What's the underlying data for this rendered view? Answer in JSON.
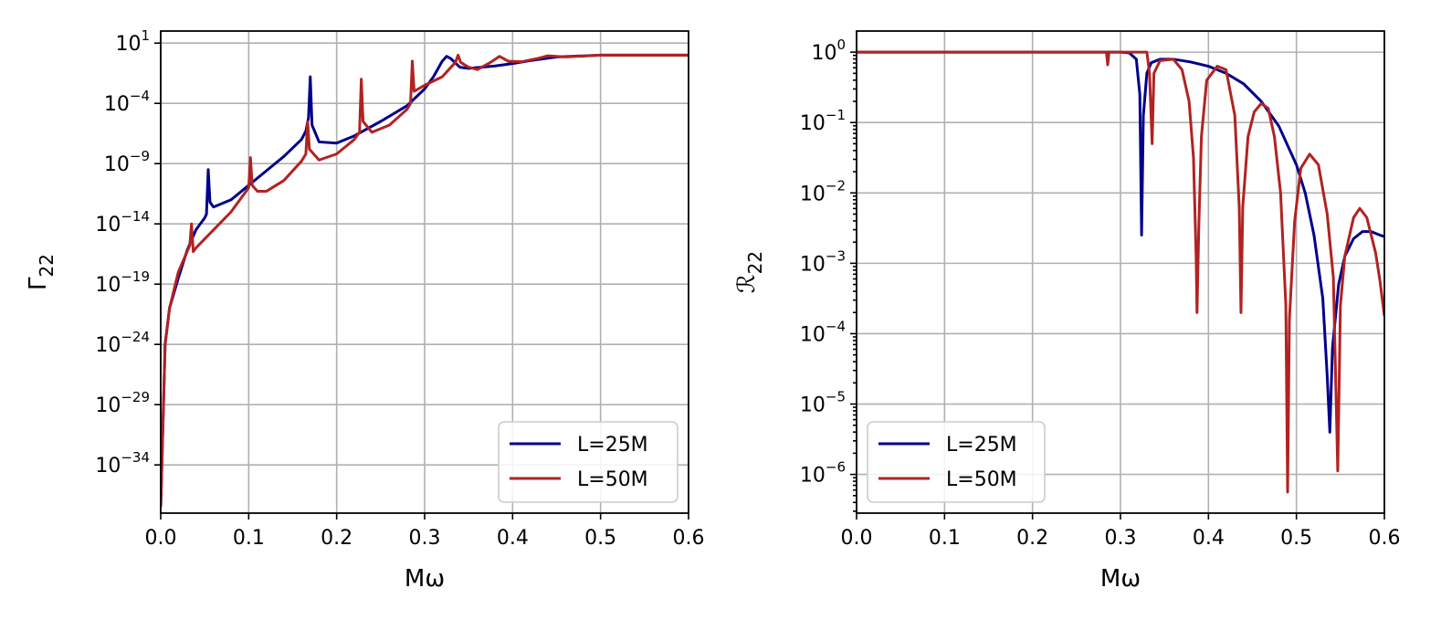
{
  "chart_data": [
    {
      "type": "line",
      "xlabel": "Mω",
      "ylabel": "Γ22",
      "ylabel_main": "Γ",
      "ylabel_sub": "22",
      "xlim": [
        0.0,
        0.6
      ],
      "ylim_log10": [
        -38,
        2
      ],
      "yscale": "log",
      "grid": true,
      "legend_placement": "lower-right",
      "x_ticks": [
        "0.0",
        "0.1",
        "0.2",
        "0.3",
        "0.4",
        "0.5",
        "0.6"
      ],
      "y_ticks": [
        {
          "base": "10",
          "exp": "1"
        },
        {
          "base": "10",
          "exp": "−4"
        },
        {
          "base": "10",
          "exp": "−9"
        },
        {
          "base": "10",
          "exp": "−14"
        },
        {
          "base": "10",
          "exp": "−19"
        },
        {
          "base": "10",
          "exp": "−24"
        },
        {
          "base": "10",
          "exp": "−29"
        },
        {
          "base": "10",
          "exp": "−34"
        }
      ],
      "series": [
        {
          "name": "L=25M",
          "color": "#00008b",
          "points_log10": [
            [
              0.0,
              -37.5
            ],
            [
              0.005,
              -24
            ],
            [
              0.01,
              -21
            ],
            [
              0.02,
              -18.5
            ],
            [
              0.03,
              -16.2
            ],
            [
              0.04,
              -14.5
            ],
            [
              0.05,
              -13.5
            ],
            [
              0.052,
              -13.2
            ],
            [
              0.054,
              -9.5
            ],
            [
              0.056,
              -12.2
            ],
            [
              0.06,
              -12.6
            ],
            [
              0.08,
              -12
            ],
            [
              0.1,
              -10.8
            ],
            [
              0.12,
              -9.6
            ],
            [
              0.14,
              -8.4
            ],
            [
              0.16,
              -7
            ],
            [
              0.165,
              -6.3
            ],
            [
              0.168,
              -5.2
            ],
            [
              0.17,
              -1.8
            ],
            [
              0.172,
              -5.8
            ],
            [
              0.18,
              -7.2
            ],
            [
              0.2,
              -7.3
            ],
            [
              0.22,
              -6.7
            ],
            [
              0.25,
              -5.5
            ],
            [
              0.28,
              -4.2
            ],
            [
              0.3,
              -2.8
            ],
            [
              0.31,
              -1.8
            ],
            [
              0.32,
              -0.5
            ],
            [
              0.325,
              -0.1
            ],
            [
              0.33,
              -0.3
            ],
            [
              0.34,
              -1.0
            ],
            [
              0.35,
              -1.1
            ],
            [
              0.38,
              -0.9
            ],
            [
              0.4,
              -0.7
            ],
            [
              0.42,
              -0.45
            ],
            [
              0.45,
              -0.15
            ],
            [
              0.5,
              0.0
            ],
            [
              0.6,
              0.0
            ]
          ]
        },
        {
          "name": "L=50M",
          "color": "#b22222",
          "points_log10": [
            [
              0.0,
              -37.5
            ],
            [
              0.005,
              -24
            ],
            [
              0.01,
              -21
            ],
            [
              0.02,
              -18
            ],
            [
              0.03,
              -16.3
            ],
            [
              0.033,
              -15.8
            ],
            [
              0.035,
              -14.0
            ],
            [
              0.037,
              -16.3
            ],
            [
              0.04,
              -16.0
            ],
            [
              0.06,
              -14.5
            ],
            [
              0.08,
              -13
            ],
            [
              0.09,
              -12
            ],
            [
              0.1,
              -11
            ],
            [
              0.102,
              -8.5
            ],
            [
              0.104,
              -10.8
            ],
            [
              0.11,
              -11.3
            ],
            [
              0.12,
              -11.3
            ],
            [
              0.14,
              -10.4
            ],
            [
              0.16,
              -8.8
            ],
            [
              0.165,
              -8.2
            ],
            [
              0.167,
              -5.5
            ],
            [
              0.169,
              -7.8
            ],
            [
              0.18,
              -8.7
            ],
            [
              0.2,
              -8.2
            ],
            [
              0.22,
              -7
            ],
            [
              0.226,
              -6.4
            ],
            [
              0.228,
              -2.0
            ],
            [
              0.23,
              -5.5
            ],
            [
              0.24,
              -6.4
            ],
            [
              0.26,
              -5.8
            ],
            [
              0.28,
              -4.5
            ],
            [
              0.284,
              -4.0
            ],
            [
              0.286,
              -0.5
            ],
            [
              0.288,
              -3.0
            ],
            [
              0.3,
              -2.5
            ],
            [
              0.32,
              -1.8
            ],
            [
              0.335,
              -0.6
            ],
            [
              0.338,
              0.0
            ],
            [
              0.341,
              -0.6
            ],
            [
              0.35,
              -1.0
            ],
            [
              0.36,
              -1.2
            ],
            [
              0.375,
              -0.6
            ],
            [
              0.385,
              -0.1
            ],
            [
              0.395,
              -0.5
            ],
            [
              0.41,
              -0.55
            ],
            [
              0.43,
              -0.25
            ],
            [
              0.44,
              -0.05
            ],
            [
              0.46,
              -0.15
            ],
            [
              0.5,
              0.0
            ],
            [
              0.6,
              0.0
            ]
          ]
        }
      ]
    },
    {
      "type": "line",
      "xlabel": "Mω",
      "ylabel": "ℛ22",
      "ylabel_main": "ℛ",
      "ylabel_sub": "22",
      "xlim": [
        0.0,
        0.6
      ],
      "ylim_log10": [
        -6.55,
        0.3
      ],
      "yscale": "log",
      "grid": true,
      "legend_placement": "lower-left",
      "x_ticks": [
        "0.0",
        "0.1",
        "0.2",
        "0.3",
        "0.4",
        "0.5",
        "0.6"
      ],
      "y_ticks": [
        {
          "base": "10",
          "exp": "0"
        },
        {
          "base": "10",
          "exp": "−1"
        },
        {
          "base": "10",
          "exp": "−2"
        },
        {
          "base": "10",
          "exp": "−3"
        },
        {
          "base": "10",
          "exp": "−4"
        },
        {
          "base": "10",
          "exp": "−5"
        },
        {
          "base": "10",
          "exp": "−6"
        }
      ],
      "series": [
        {
          "name": "L=25M",
          "color": "#00008b",
          "points_log10": [
            [
              0.0,
              0.0
            ],
            [
              0.3,
              0.0
            ],
            [
              0.31,
              -0.01
            ],
            [
              0.318,
              -0.1
            ],
            [
              0.322,
              -0.6
            ],
            [
              0.324,
              -2.6
            ],
            [
              0.326,
              -0.9
            ],
            [
              0.33,
              -0.3
            ],
            [
              0.335,
              -0.15
            ],
            [
              0.345,
              -0.1
            ],
            [
              0.36,
              -0.1
            ],
            [
              0.38,
              -0.14
            ],
            [
              0.4,
              -0.2
            ],
            [
              0.42,
              -0.3
            ],
            [
              0.44,
              -0.45
            ],
            [
              0.46,
              -0.7
            ],
            [
              0.48,
              -1.05
            ],
            [
              0.5,
              -1.6
            ],
            [
              0.51,
              -2.0
            ],
            [
              0.52,
              -2.6
            ],
            [
              0.53,
              -3.5
            ],
            [
              0.535,
              -4.6
            ],
            [
              0.538,
              -5.4
            ],
            [
              0.541,
              -4.2
            ],
            [
              0.548,
              -3.3
            ],
            [
              0.555,
              -2.9
            ],
            [
              0.565,
              -2.65
            ],
            [
              0.575,
              -2.55
            ],
            [
              0.585,
              -2.55
            ],
            [
              0.595,
              -2.6
            ],
            [
              0.6,
              -2.62
            ]
          ]
        },
        {
          "name": "L=50M",
          "color": "#b22222",
          "points_log10": [
            [
              0.0,
              0.0
            ],
            [
              0.284,
              0.0
            ],
            [
              0.2855,
              -0.18
            ],
            [
              0.287,
              0.0
            ],
            [
              0.33,
              0.0
            ],
            [
              0.333,
              -0.3
            ],
            [
              0.336,
              -1.3
            ],
            [
              0.338,
              -0.3
            ],
            [
              0.345,
              -0.12
            ],
            [
              0.36,
              -0.1
            ],
            [
              0.37,
              -0.25
            ],
            [
              0.378,
              -0.7
            ],
            [
              0.383,
              -1.5
            ],
            [
              0.386,
              -2.9
            ],
            [
              0.387,
              -3.7
            ],
            [
              0.389,
              -2.5
            ],
            [
              0.392,
              -1.2
            ],
            [
              0.398,
              -0.4
            ],
            [
              0.41,
              -0.2
            ],
            [
              0.42,
              -0.25
            ],
            [
              0.43,
              -0.9
            ],
            [
              0.435,
              -2.2
            ],
            [
              0.437,
              -3.7
            ],
            [
              0.439,
              -2.2
            ],
            [
              0.445,
              -1.2
            ],
            [
              0.452,
              -0.85
            ],
            [
              0.46,
              -0.73
            ],
            [
              0.468,
              -0.8
            ],
            [
              0.475,
              -1.2
            ],
            [
              0.482,
              -2.0
            ],
            [
              0.488,
              -3.6
            ],
            [
              0.49,
              -6.25
            ],
            [
              0.492,
              -3.8
            ],
            [
              0.498,
              -2.4
            ],
            [
              0.505,
              -1.65
            ],
            [
              0.515,
              -1.45
            ],
            [
              0.525,
              -1.6
            ],
            [
              0.535,
              -2.3
            ],
            [
              0.542,
              -3.2
            ],
            [
              0.547,
              -5.95
            ],
            [
              0.55,
              -3.6
            ],
            [
              0.555,
              -2.9
            ],
            [
              0.565,
              -2.35
            ],
            [
              0.572,
              -2.22
            ],
            [
              0.58,
              -2.35
            ],
            [
              0.59,
              -2.85
            ],
            [
              0.595,
              -3.25
            ],
            [
              0.6,
              -3.75
            ]
          ]
        }
      ]
    }
  ]
}
